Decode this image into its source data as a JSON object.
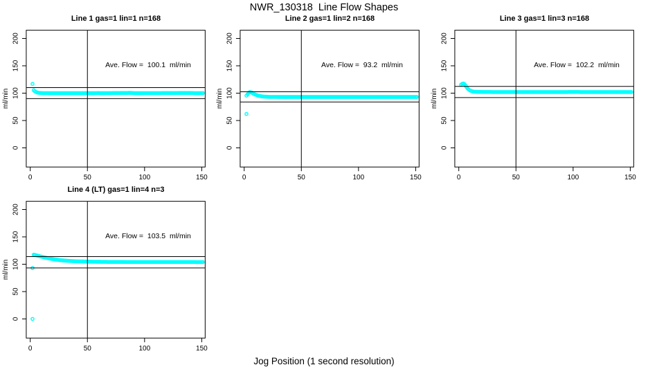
{
  "figure": {
    "title": "NWR_130318  Line Flow Shapes",
    "xlabel": "Jog Position (1 second resolution)",
    "background": "#ffffff",
    "point_color": "#00ffff",
    "axis_color": "#000000",
    "ylabel": "ml/min"
  },
  "chart_data": [
    {
      "type": "scatter",
      "title": "Line 1 gas=1 lin=1 n=168",
      "line": 1,
      "gas": 1,
      "lin": 1,
      "n": 168,
      "annotation": "Ave. Flow =  100.1  ml/min",
      "ave_flow": 100.1,
      "ylabel": "ml/min",
      "x_ticks": [
        0,
        50,
        100,
        150
      ],
      "y_ticks": [
        0,
        50,
        100,
        150,
        200
      ],
      "xlim": [
        -3.5,
        153
      ],
      "ylim": [
        -35,
        215
      ],
      "vline_x": 50,
      "hlines": [
        110.1,
        90.1
      ],
      "outliers": [
        [
          2,
          117
        ]
      ],
      "band_points": [
        [
          3,
          105.5
        ],
        [
          4,
          103.4
        ],
        [
          5,
          102.2
        ],
        [
          6,
          101.3
        ],
        [
          7,
          100.8
        ],
        [
          8,
          100.5
        ],
        [
          10,
          100.2
        ],
        [
          13,
          100.1
        ],
        [
          20,
          100.0
        ],
        [
          55,
          100.0
        ],
        [
          60,
          100.3
        ],
        [
          62,
          100.0
        ],
        [
          88,
          100.5
        ],
        [
          92,
          100.0
        ],
        [
          140,
          100.4
        ],
        [
          144,
          100.0
        ],
        [
          151,
          100.1
        ]
      ],
      "grid": false,
      "legend": null
    },
    {
      "type": "scatter",
      "title": "Line 2 gas=1 lin=2 n=168",
      "line": 2,
      "gas": 1,
      "lin": 2,
      "n": 168,
      "annotation": "Ave. Flow =  93.2  ml/min",
      "ave_flow": 93.2,
      "ylabel": "ml/min",
      "x_ticks": [
        0,
        50,
        100,
        150
      ],
      "y_ticks": [
        0,
        50,
        100,
        150,
        200
      ],
      "xlim": [
        -3.5,
        153
      ],
      "ylim": [
        -35,
        215
      ],
      "vline_x": 50,
      "hlines": [
        102.5,
        83.9
      ],
      "outliers": [
        [
          2,
          62
        ]
      ],
      "band_points": [
        [
          2,
          95.5
        ],
        [
          3,
          98.0
        ],
        [
          4,
          100.8
        ],
        [
          5,
          101.9
        ],
        [
          6,
          101.4
        ],
        [
          7,
          100.4
        ],
        [
          8,
          99.2
        ],
        [
          9,
          98.1
        ],
        [
          10,
          97.2
        ],
        [
          12,
          95.7
        ],
        [
          14,
          94.7
        ],
        [
          16,
          94.0
        ],
        [
          18,
          93.6
        ],
        [
          22,
          93.2
        ],
        [
          30,
          93.1
        ],
        [
          80,
          93.0
        ],
        [
          151,
          93.0
        ]
      ],
      "grid": false,
      "legend": null
    },
    {
      "type": "scatter",
      "title": "Line 3 gas=1 lin=3 n=168",
      "line": 3,
      "gas": 1,
      "lin": 3,
      "n": 168,
      "annotation": "Ave. Flow =  102.2  ml/min",
      "ave_flow": 102.2,
      "ylabel": "ml/min",
      "x_ticks": [
        0,
        50,
        100,
        150
      ],
      "y_ticks": [
        0,
        50,
        100,
        150,
        200
      ],
      "xlim": [
        -3.5,
        153
      ],
      "ylim": [
        -35,
        215
      ],
      "vline_x": 50,
      "hlines": [
        112.4,
        92.0
      ],
      "outliers": [],
      "band_points": [
        [
          2,
          115.5
        ],
        [
          3,
          117.2
        ],
        [
          4,
          117.6
        ],
        [
          5,
          116.4
        ],
        [
          6,
          113.4
        ],
        [
          7,
          110.4
        ],
        [
          8,
          107.9
        ],
        [
          9,
          106.0
        ],
        [
          10,
          104.7
        ],
        [
          12,
          103.2
        ],
        [
          14,
          102.6
        ],
        [
          17,
          102.3
        ],
        [
          25,
          102.1
        ],
        [
          60,
          102.0
        ],
        [
          100,
          102.1
        ],
        [
          151,
          102.0
        ]
      ],
      "grid": false,
      "legend": null
    },
    {
      "type": "scatter",
      "title": "Line 4 (LT) gas=1 lin=4 n=3",
      "line": 4,
      "gas": 1,
      "lin": 4,
      "n": 3,
      "annotation": "Ave. Flow =  103.5  ml/min",
      "ave_flow": 103.5,
      "ylabel": "ml/min",
      "x_ticks": [
        0,
        50,
        100,
        150
      ],
      "y_ticks": [
        0,
        50,
        100,
        150,
        200
      ],
      "xlim": [
        -3.5,
        153
      ],
      "ylim": [
        -35,
        215
      ],
      "vline_x": 50,
      "hlines": [
        113.9,
        93.2
      ],
      "outliers": [
        [
          2,
          0
        ],
        [
          2,
          93
        ]
      ],
      "band_points": [
        [
          3,
          117.5
        ],
        [
          5,
          116.5
        ],
        [
          7,
          115.3
        ],
        [
          9,
          114.2
        ],
        [
          12,
          112.7
        ],
        [
          15,
          111.3
        ],
        [
          18,
          110.0
        ],
        [
          22,
          108.6
        ],
        [
          26,
          107.5
        ],
        [
          30,
          106.7
        ],
        [
          35,
          105.9
        ],
        [
          40,
          105.4
        ],
        [
          45,
          105.1
        ],
        [
          50,
          104.8
        ],
        [
          60,
          104.4
        ],
        [
          70,
          104.2
        ],
        [
          85,
          104.1
        ],
        [
          100,
          104.0
        ],
        [
          120,
          104.0
        ],
        [
          135,
          104.1
        ],
        [
          151,
          103.9
        ]
      ],
      "grid": false,
      "legend": null
    }
  ]
}
